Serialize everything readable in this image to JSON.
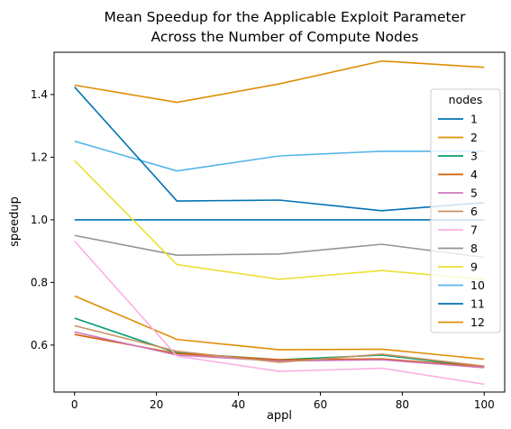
{
  "chart_data": {
    "type": "line",
    "title": [
      "Mean Speedup for the Applicable Exploit Parameter",
      "Across the Number of Compute Nodes"
    ],
    "xlabel": "appl",
    "ylabel": "speedup",
    "xlim": [
      -5,
      105
    ],
    "ylim": [
      0.45,
      1.535
    ],
    "xticks": [
      0,
      20,
      40,
      60,
      80,
      100
    ],
    "yticks": [
      0.6,
      0.8,
      1.0,
      1.2,
      1.4
    ],
    "xtick_labels": [
      "0",
      "20",
      "40",
      "60",
      "80",
      "100"
    ],
    "ytick_labels": [
      "0.6",
      "0.8",
      "1.0",
      "1.2",
      "1.4"
    ],
    "grid": false,
    "legend": {
      "title": "nodes",
      "placement": "right"
    },
    "x": [
      0,
      25,
      50,
      75,
      100
    ],
    "series": [
      {
        "name": "1",
        "color": "#0173b2",
        "values": [
          1.0,
          1.0,
          1.0,
          1.0,
          1.0
        ]
      },
      {
        "name": "2",
        "color": "#de8f05",
        "values": [
          0.757,
          0.618,
          0.585,
          0.587,
          0.555
        ]
      },
      {
        "name": "3",
        "color": "#029e73",
        "values": [
          0.686,
          0.575,
          0.553,
          0.568,
          0.53
        ]
      },
      {
        "name": "4",
        "color": "#d55e00",
        "values": [
          0.634,
          0.573,
          0.553,
          0.556,
          0.531
        ]
      },
      {
        "name": "5",
        "color": "#cc78bc",
        "values": [
          0.642,
          0.568,
          0.549,
          0.553,
          0.528
        ]
      },
      {
        "name": "6",
        "color": "#ca9161",
        "values": [
          0.662,
          0.58,
          0.545,
          0.571,
          0.533
        ]
      },
      {
        "name": "7",
        "color": "#fbafe4",
        "values": [
          0.932,
          0.565,
          0.516,
          0.526,
          0.475
        ]
      },
      {
        "name": "8",
        "color": "#949494",
        "values": [
          0.95,
          0.887,
          0.891,
          0.922,
          0.88
        ]
      },
      {
        "name": "9",
        "color": "#ece133",
        "values": [
          1.189,
          0.857,
          0.81,
          0.838,
          0.81
        ]
      },
      {
        "name": "10",
        "color": "#56b4e9",
        "values": [
          1.251,
          1.156,
          1.204,
          1.219,
          1.219
        ]
      },
      {
        "name": "11",
        "color": "#0173b2",
        "values": [
          1.424,
          1.06,
          1.063,
          1.029,
          1.055
        ]
      },
      {
        "name": "12",
        "color": "#de8f05",
        "values": [
          1.43,
          1.375,
          1.434,
          1.507,
          1.487
        ]
      }
    ]
  }
}
